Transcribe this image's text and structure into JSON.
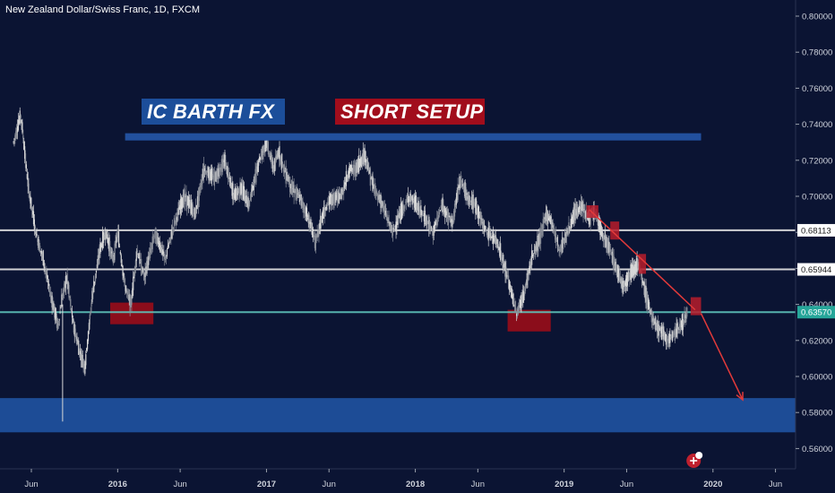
{
  "chart_title": "New Zealand Dollar/Swiss Franc, 1D, FXCM",
  "annotations": {
    "brand_label": "IC BARTH FX",
    "setup_label": "SHORT SETUP"
  },
  "colors": {
    "background": "#0b1433",
    "brand_blue": "#1c4e9a",
    "setup_red": "#a10d1c",
    "support_zone": "#1f4f9c",
    "resistance_bar": "#22509e",
    "demand_box": "#8b0d1b",
    "arrow_red": "#e23a3a",
    "current_price_badge": "#26a69a",
    "level_badge": "#ffffff"
  },
  "chart_data": {
    "type": "candlestick",
    "title": "New Zealand Dollar/Swiss Franc, 1D, FXCM",
    "x_ticks": [
      "Jun",
      "2016",
      "Jun",
      "2017",
      "Jun",
      "2018",
      "Jun",
      "2019",
      "Jun",
      "2020",
      "Jun"
    ],
    "y_ticks": [
      "0.80000",
      "0.78000",
      "0.76000",
      "0.74000",
      "0.72000",
      "0.70000",
      "0.68000",
      "0.66000",
      "0.64000",
      "0.62000",
      "0.60000",
      "0.58000",
      "0.56000"
    ],
    "ylim": [
      0.5525,
      0.8095
    ],
    "price_path": [
      [
        2015.3,
        0.73
      ],
      [
        2015.35,
        0.745
      ],
      [
        2015.4,
        0.705
      ],
      [
        2015.45,
        0.68
      ],
      [
        2015.5,
        0.665
      ],
      [
        2015.55,
        0.645
      ],
      [
        2015.6,
        0.628
      ],
      [
        2015.63,
        0.645
      ],
      [
        2015.66,
        0.655
      ],
      [
        2015.7,
        0.63
      ],
      [
        2015.74,
        0.615
      ],
      [
        2015.78,
        0.605
      ],
      [
        2015.83,
        0.645
      ],
      [
        2015.88,
        0.67
      ],
      [
        2015.92,
        0.68
      ],
      [
        2015.97,
        0.665
      ],
      [
        2016.0,
        0.68
      ],
      [
        2016.05,
        0.65
      ],
      [
        2016.09,
        0.64
      ],
      [
        2016.13,
        0.67
      ],
      [
        2016.18,
        0.655
      ],
      [
        2016.25,
        0.68
      ],
      [
        2016.32,
        0.665
      ],
      [
        2016.38,
        0.685
      ],
      [
        2016.45,
        0.7
      ],
      [
        2016.52,
        0.69
      ],
      [
        2016.58,
        0.715
      ],
      [
        2016.65,
        0.71
      ],
      [
        2016.72,
        0.72
      ],
      [
        2016.78,
        0.7
      ],
      [
        2016.83,
        0.705
      ],
      [
        2016.88,
        0.695
      ],
      [
        2016.95,
        0.72
      ],
      [
        2017.0,
        0.73
      ],
      [
        2017.05,
        0.715
      ],
      [
        2017.08,
        0.725
      ],
      [
        2017.12,
        0.715
      ],
      [
        2017.17,
        0.705
      ],
      [
        2017.22,
        0.7
      ],
      [
        2017.28,
        0.688
      ],
      [
        2017.33,
        0.675
      ],
      [
        2017.38,
        0.69
      ],
      [
        2017.43,
        0.698
      ],
      [
        2017.5,
        0.7
      ],
      [
        2017.56,
        0.715
      ],
      [
        2017.6,
        0.715
      ],
      [
        2017.66,
        0.723
      ],
      [
        2017.72,
        0.705
      ],
      [
        2017.78,
        0.695
      ],
      [
        2017.85,
        0.68
      ],
      [
        2017.9,
        0.69
      ],
      [
        2017.96,
        0.7
      ],
      [
        2018.05,
        0.69
      ],
      [
        2018.12,
        0.68
      ],
      [
        2018.18,
        0.695
      ],
      [
        2018.25,
        0.685
      ],
      [
        2018.3,
        0.71
      ],
      [
        2018.35,
        0.7
      ],
      [
        2018.4,
        0.695
      ],
      [
        2018.48,
        0.68
      ],
      [
        2018.55,
        0.675
      ],
      [
        2018.62,
        0.655
      ],
      [
        2018.68,
        0.635
      ],
      [
        2018.73,
        0.645
      ],
      [
        2018.78,
        0.665
      ],
      [
        2018.83,
        0.675
      ],
      [
        2018.88,
        0.69
      ],
      [
        2018.92,
        0.685
      ],
      [
        2018.97,
        0.67
      ],
      [
        2019.02,
        0.68
      ],
      [
        2019.07,
        0.69
      ],
      [
        2019.12,
        0.695
      ],
      [
        2019.16,
        0.688
      ],
      [
        2019.21,
        0.69
      ],
      [
        2019.26,
        0.678
      ],
      [
        2019.31,
        0.67
      ],
      [
        2019.35,
        0.66
      ],
      [
        2019.4,
        0.65
      ],
      [
        2019.45,
        0.658
      ],
      [
        2019.5,
        0.662
      ],
      [
        2019.55,
        0.645
      ],
      [
        2019.6,
        0.63
      ],
      [
        2019.65,
        0.625
      ],
      [
        2019.7,
        0.62
      ],
      [
        2019.75,
        0.625
      ],
      [
        2019.8,
        0.63
      ],
      [
        2019.83,
        0.6357
      ]
    ],
    "levels": [
      0.68113,
      0.65944,
      0.6357
    ],
    "level_labels": [
      "0.68113",
      "0.65944",
      "0.63570"
    ],
    "current_price": "0.63570",
    "resistance_zone": {
      "x_range": [
        2016.05,
        2019.92
      ],
      "y_range": [
        0.731,
        0.735
      ]
    },
    "support_zone": {
      "x_range": [
        2015.15,
        2020.6
      ],
      "y_range": [
        0.569,
        0.588
      ]
    },
    "demand_boxes": [
      {
        "x_range": [
          2015.95,
          2016.24
        ],
        "y_range": [
          0.629,
          0.641
        ]
      },
      {
        "x_range": [
          2018.62,
          2018.91
        ],
        "y_range": [
          0.625,
          0.637
        ]
      }
    ],
    "supply_boxes": [
      {
        "x_range": [
          2019.15,
          2019.23
        ],
        "y_range": [
          0.688,
          0.695
        ]
      },
      {
        "x_range": [
          2019.31,
          2019.37
        ],
        "y_range": [
          0.676,
          0.686
        ]
      },
      {
        "x_range": [
          2019.5,
          2019.55
        ],
        "y_range": [
          0.657,
          0.668
        ]
      },
      {
        "x_range": [
          2019.85,
          2019.92
        ],
        "y_range": [
          0.634,
          0.644
        ]
      }
    ],
    "trend_line": [
      [
        2019.17,
        0.6925
      ],
      [
        2019.88,
        0.637
      ]
    ],
    "projection_arrow": [
      [
        2019.92,
        0.635
      ],
      [
        2020.2,
        0.587
      ]
    ],
    "grid": false,
    "legend": "none"
  }
}
